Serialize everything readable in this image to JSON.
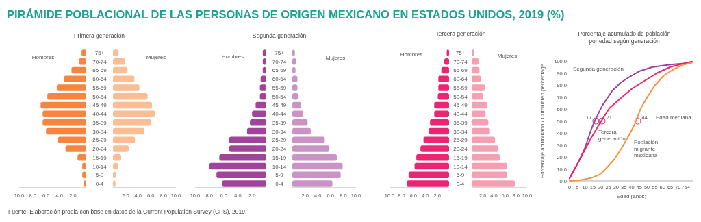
{
  "chart_data": [
    {
      "type": "bar",
      "orientation": "horizontal",
      "title": "PIRÁMIDE POBLACIONAL DE LAS PERSONAS DE ORIGEN MEXICANO EN ESTADOS UNIDOS, 2019 (%)",
      "subtitle": "Primera generación",
      "annotations": [
        "Fuente: Elaboración propia con base en datos de la Current Population Survey (CPS), 2019."
      ],
      "categories": [
        "75+",
        "70-74",
        "65-69",
        "60-64",
        "55-59",
        "50-54",
        "45-49",
        "40-44",
        "35-39",
        "30-34",
        "25-29",
        "20-24",
        "15-19",
        "10-14",
        "5-9",
        "0-4"
      ],
      "series": [
        {
          "name": "Hombres",
          "color": "#f5853f",
          "values": [
            0.7,
            1.1,
            2.2,
            3.3,
            4.4,
            5.8,
            6.8,
            6.5,
            6.5,
            6.0,
            4.2,
            3.1,
            1.3,
            0.6,
            0.6,
            0.4
          ]
        }
      ],
      "xlim": [
        10,
        0
      ],
      "xticks": [
        {
          "value": 10,
          "label": "10.0"
        },
        {
          "value": 8,
          "label": "8.0"
        },
        {
          "value": 6,
          "label": "6.0"
        },
        {
          "value": 4,
          "label": "4.0"
        },
        {
          "value": 2,
          "label": "2.0"
        }
      ]
    },
    {
      "type": "bar",
      "orientation": "horizontal",
      "tick_labels": "x",
      "categories": [
        null,
        null,
        null,
        null,
        null,
        null,
        null,
        null,
        null,
        null,
        null,
        null,
        null,
        null,
        null,
        null
      ],
      "series": [
        {
          "name": "Mujeres",
          "color": "#fbbd93",
          "values": [
            0.9,
            1.9,
            2.3,
            3.4,
            4.2,
            5.5,
            6.2,
            6.7,
            6.1,
            5.0,
            3.5,
            2.5,
            1.3,
            0.8,
            0.5,
            0.4
          ]
        }
      ],
      "xlim": [
        0,
        10
      ],
      "xticks": [
        {
          "value": 2,
          "label": "2.0"
        },
        {
          "value": 4,
          "label": "4.0"
        },
        {
          "value": 6,
          "label": "6.0"
        },
        {
          "value": 8,
          "label": "8.0"
        },
        {
          "value": 10,
          "label": "10.0"
        }
      ]
    },
    {
      "type": "bar",
      "orientation": "horizontal",
      "title": "Segunda generación",
      "categories": [
        "75+",
        "70-74",
        "65-69",
        "60-64",
        "55-59",
        "50-54",
        "45-49",
        "40-44",
        "35-39",
        "30-34",
        "25-29",
        "20-24",
        "15-19",
        "10-14",
        "5-9",
        "0-4"
      ],
      "series": [
        {
          "name": "Hombres",
          "color": "#a0449a",
          "values": [
            0.5,
            0.5,
            0.5,
            0.8,
            0.9,
            0.9,
            1.5,
            2.0,
            2.3,
            2.7,
            5.2,
            5.2,
            6.6,
            8.0,
            7.0,
            6.2
          ]
        }
      ],
      "xlim": [
        10,
        0
      ],
      "xticks": [
        {
          "value": 10,
          "label": "10.0"
        },
        {
          "value": 8,
          "label": "8.0"
        },
        {
          "value": 6,
          "label": "6.0"
        },
        {
          "value": 4,
          "label": "4.0"
        },
        {
          "value": 2,
          "label": "2.0"
        }
      ]
    },
    {
      "type": "bar",
      "orientation": "horizontal",
      "tick_labels": "x",
      "categories": [
        null,
        null,
        null,
        null,
        null,
        null,
        null,
        null,
        null,
        null,
        null,
        null,
        null,
        null,
        null,
        null
      ],
      "series": [
        {
          "name": "Mujeres",
          "color": "#c994c5",
          "values": [
            0.4,
            0.6,
            0.5,
            0.8,
            0.8,
            0.9,
            1.4,
            1.7,
            2.4,
            2.9,
            5.1,
            5.8,
            7.0,
            7.9,
            7.6,
            6.3
          ]
        }
      ],
      "xlim": [
        0,
        10
      ],
      "xticks": [
        {
          "value": 2,
          "label": "2.0"
        },
        {
          "value": 4,
          "label": "4.0"
        },
        {
          "value": 6,
          "label": "6.0"
        },
        {
          "value": 8,
          "label": "8.0"
        },
        {
          "value": 10,
          "label": "10.0"
        }
      ]
    },
    {
      "type": "bar",
      "orientation": "horizontal",
      "title": "Tercera generación",
      "categories": [
        "75+",
        "70-74",
        "65-69",
        "60-64",
        "55-59",
        "50-54",
        "45-49",
        "40-44",
        "35-39",
        "30-34",
        "25-29",
        "20-24",
        "15-19",
        "10-14",
        "5-9",
        "0-4"
      ],
      "series": [
        {
          "name": "Hombres",
          "color": "#ec2474",
          "values": [
            0.4,
            0.8,
            1.3,
            1.8,
            1.8,
            1.9,
            2.5,
            2.5,
            3.2,
            3.4,
            4.3,
            4.8,
            5.5,
            5.8,
            6.8,
            7.1
          ]
        }
      ],
      "xlim": [
        10,
        0
      ],
      "xticks": [
        {
          "value": 10,
          "label": "10.0"
        },
        {
          "value": 8,
          "label": "8.0"
        },
        {
          "value": 6,
          "label": "6.0"
        },
        {
          "value": 4,
          "label": "4.0"
        },
        {
          "value": 2,
          "label": "2.0"
        }
      ]
    },
    {
      "type": "bar",
      "orientation": "horizontal",
      "tick_labels": "x",
      "categories": [
        null,
        null,
        null,
        null,
        null,
        null,
        null,
        null,
        null,
        null,
        null,
        null,
        null,
        null,
        null,
        null
      ],
      "series": [
        {
          "name": "Mujeres",
          "color": "#f5a0b2",
          "values": [
            0.5,
            1.3,
            1.4,
            1.7,
            2.4,
            2.1,
            2.8,
            2.5,
            3.0,
            3.3,
            4.2,
            4.8,
            5.1,
            6.4,
            6.4,
            7.8
          ]
        }
      ],
      "xlim": [
        0,
        10
      ],
      "xticks": [
        {
          "value": 2,
          "label": "2.0"
        },
        {
          "value": 4,
          "label": "4.0"
        },
        {
          "value": 6,
          "label": "6.0"
        },
        {
          "value": 8,
          "label": "8.0"
        },
        {
          "value": 10,
          "label": "10.0"
        }
      ]
    },
    {
      "type": "line",
      "title": "Porcentaje acumulado de población por edad según generación",
      "xlabel": "Edad (años)",
      "ylabel": "Porcentaje acumulado / Cumulated percentage",
      "annotations": [
        {
          "text": "17",
          "x": 17,
          "y": 50
        },
        {
          "text": "21",
          "x": 21,
          "y": 50
        },
        {
          "text": "44",
          "x": 44,
          "y": 50
        },
        "Edad mediana"
      ],
      "series": [
        {
          "name": "Segunda generación",
          "color": "#9b3f98",
          "x": [
            0,
            5,
            9.5,
            14,
            16.6,
            21,
            27.5,
            33,
            39,
            45,
            53.7,
            65,
            74,
            79
          ],
          "values": [
            2.5,
            14,
            26,
            43,
            51,
            62.5,
            75,
            82,
            87,
            91.4,
            95,
            97,
            98,
            99.5
          ]
        },
        {
          "name": "Tercera generación",
          "color": "#e8246f",
          "x": [
            0,
            5,
            9.5,
            14,
            20,
            25.7,
            33,
            40.4,
            47.8,
            56.6,
            65,
            74,
            79
          ],
          "values": [
            2,
            14,
            25,
            36,
            49,
            60.6,
            69,
            77,
            83,
            90,
            95,
            98,
            99.5
          ]
        },
        {
          "name": "Población migrante mexicana",
          "color": "#f7923a",
          "x": [
            0,
            6.6,
            14,
            19,
            21,
            24,
            28.7,
            33,
            37.5,
            42,
            46,
            50.7,
            55,
            61,
            67,
            73,
            79
          ],
          "values": [
            0,
            0.6,
            2.5,
            5,
            7,
            11,
            17.7,
            26,
            36,
            47,
            60.6,
            71,
            79.6,
            88,
            93,
            96.8,
            98.6
          ]
        }
      ],
      "xlim": [
        0,
        80
      ],
      "xticks": [
        0,
        5,
        10,
        15,
        20,
        25,
        30,
        35,
        40,
        45,
        50,
        55,
        60,
        65,
        70,
        {
          "value": 75,
          "label": "75+"
        }
      ],
      "ylim": [
        0,
        100
      ],
      "yticks": [
        {
          "value": 0,
          "label": "0.0"
        },
        {
          "value": 10,
          "label": "10.0"
        },
        {
          "value": 20,
          "label": "20.0"
        },
        {
          "value": 30,
          "label": "30.0"
        },
        {
          "value": 40,
          "label": "40.0"
        },
        {
          "value": 50,
          "label": "50.0"
        },
        {
          "value": 60,
          "label": "60.0"
        },
        {
          "value": 70,
          "label": "70.0"
        },
        {
          "value": 80,
          "label": "80.0"
        },
        {
          "value": 90,
          "label": "90.0"
        },
        {
          "value": 100,
          "label": "100.0"
        }
      ]
    }
  ]
}
